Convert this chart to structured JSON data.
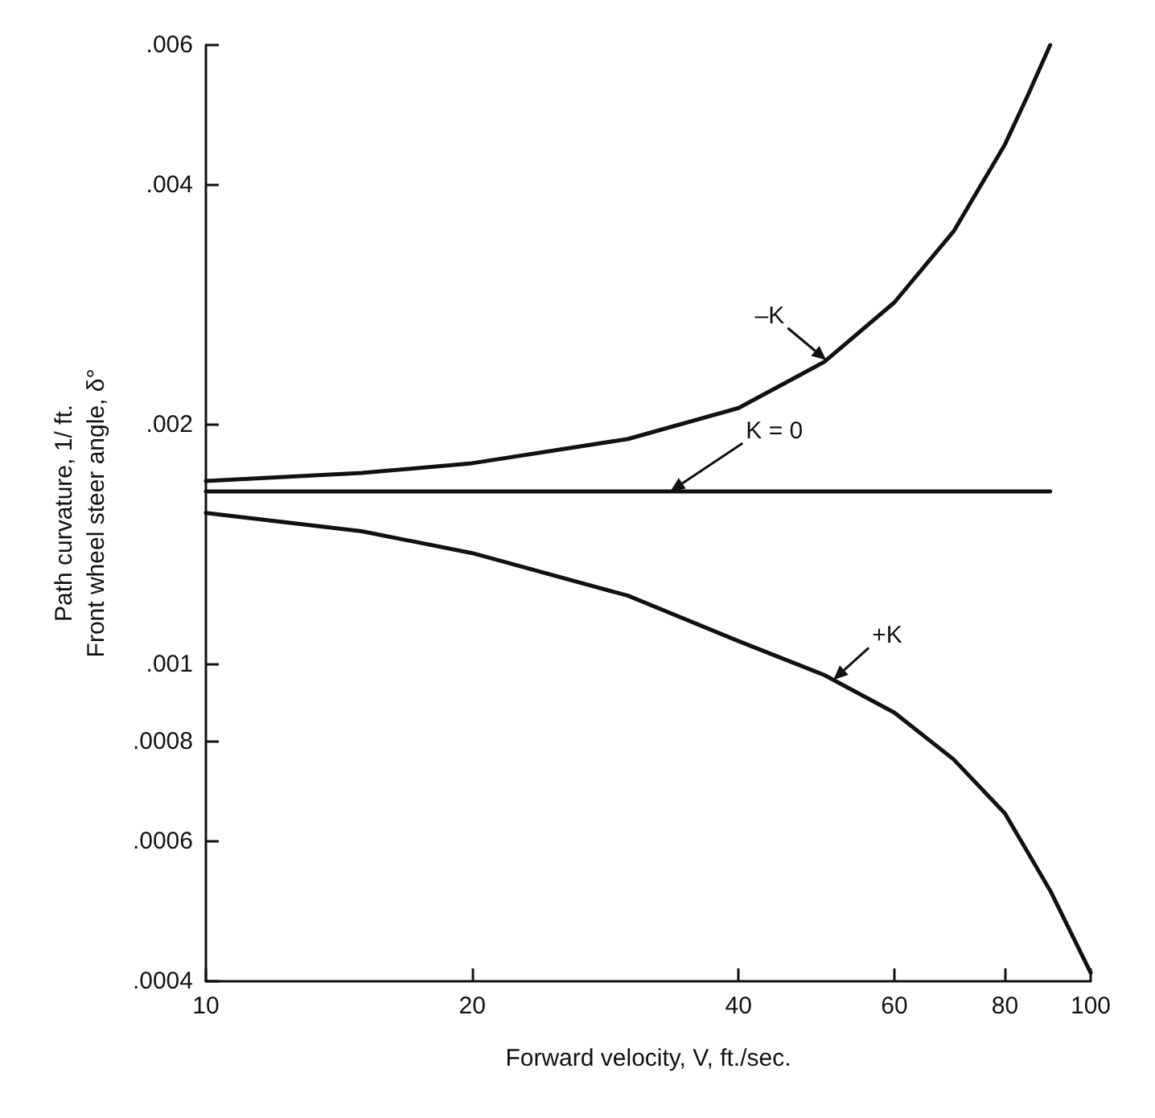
{
  "chart_data": {
    "type": "line",
    "xlabel": "Forward velocity, V, ft./sec.",
    "ylabel": "Path curvature, 1/ ft.\nFront wheel steer angle, δ°",
    "log": "xy",
    "grid": false,
    "legend": false,
    "marker": "none",
    "line_style": "solid",
    "xlim": [
      10,
      100
    ],
    "xticks": [
      10,
      20,
      40,
      60,
      80,
      100
    ],
    "ylim": [
      0.0004,
      0.006
    ],
    "yticks": [
      {
        "value": 0.0004,
        "label": ".0004"
      },
      {
        "value": 0.0006,
        "label": ".0006"
      },
      {
        "value": 0.0008,
        "label": ".0008"
      },
      {
        "value": 0.001,
        "label": ".001"
      },
      {
        "value": 0.002,
        "label": ".002"
      },
      {
        "value": 0.004,
        "label": ".004"
      },
      {
        "value": 0.006,
        "label": ".006"
      }
    ],
    "series": [
      {
        "name": "–K",
        "color": "#111111",
        "x": [
          10,
          15,
          20,
          30,
          40,
          50,
          60,
          70,
          80,
          85,
          90
        ],
        "values": [
          0.0017,
          0.00174,
          0.00179,
          0.00192,
          0.0021,
          0.0024,
          0.00285,
          0.0035,
          0.0045,
          0.0052,
          0.006
        ]
      },
      {
        "name": "K = 0",
        "color": "#111111",
        "x": [
          10,
          90
        ],
        "values": [
          0.00165,
          0.00165
        ]
      },
      {
        "name": "+K",
        "color": "#111111",
        "x": [
          10,
          15,
          20,
          30,
          40,
          50,
          60,
          70,
          80,
          90,
          100
        ],
        "values": [
          0.00155,
          0.00147,
          0.00138,
          0.00122,
          0.00107,
          0.00097,
          0.00087,
          0.00076,
          0.00065,
          0.00052,
          0.00041
        ]
      }
    ]
  }
}
